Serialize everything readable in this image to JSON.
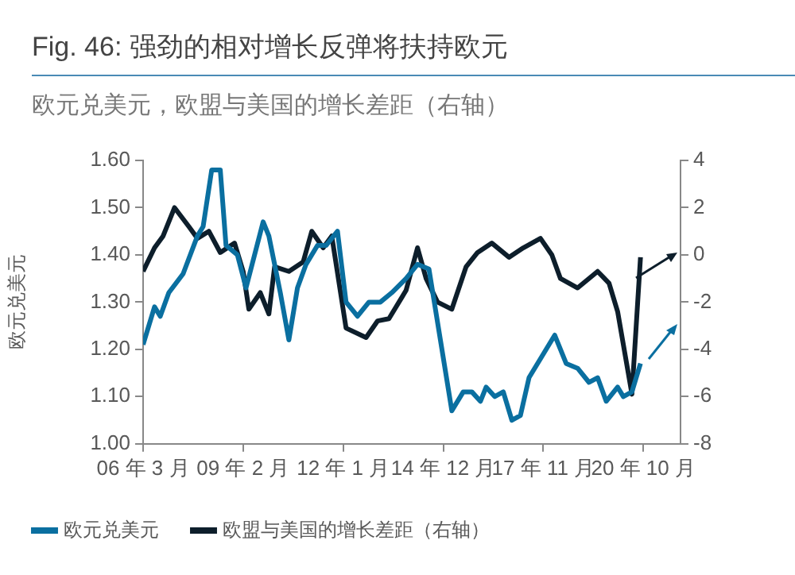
{
  "chart_data": {
    "type": "line",
    "title": "Fig. 46: 强劲的相对增长反弹将扶持欧元",
    "subtitle": "欧元兑美元，欧盟与美国的增长差距（右轴）",
    "ylabel": "欧元兑美元",
    "grid": false,
    "legend": "bottom",
    "marker": "none",
    "xlim": [
      "2006-03",
      "2021-11"
    ],
    "xticks": [
      {
        "value": "2006-03",
        "label": "06 年 3 月"
      },
      {
        "value": "2009-02",
        "label": "09 年 2 月"
      },
      {
        "value": "2012-01",
        "label": "12 年 1 月"
      },
      {
        "value": "2014-12",
        "label": "14 年 12 月"
      },
      {
        "value": "2017-11",
        "label": "17 年 11 月"
      },
      {
        "value": "2020-10",
        "label": "20 年 10 月"
      }
    ],
    "ylim": [
      1.0,
      1.6
    ],
    "yticks": [
      {
        "value": 1.0,
        "label": "1.00"
      },
      {
        "value": 1.1,
        "label": "1.10"
      },
      {
        "value": 1.2,
        "label": "1.20"
      },
      {
        "value": 1.3,
        "label": "1.30"
      },
      {
        "value": 1.4,
        "label": "1.40"
      },
      {
        "value": 1.5,
        "label": "1.50"
      },
      {
        "value": 1.6,
        "label": "1.60"
      }
    ],
    "y2lim": [
      -8,
      4
    ],
    "y2ticks": [
      -8,
      -6,
      -4,
      -2,
      0,
      2,
      4
    ],
    "series": [
      {
        "name": "欧元兑美元",
        "color": "#0a6fa0",
        "x": [
          "2006-03",
          "2006-07",
          "2006-09",
          "2006-12",
          "2007-05",
          "2007-10",
          "2007-12",
          "2008-03",
          "2008-06",
          "2008-08",
          "2008-12",
          "2009-03",
          "2009-09",
          "2009-11",
          "2010-03",
          "2010-06",
          "2010-09",
          "2010-12",
          "2011-04",
          "2011-07",
          "2011-11",
          "2012-02",
          "2012-06",
          "2012-10",
          "2013-02",
          "2013-06",
          "2013-11",
          "2014-03",
          "2014-07",
          "2014-11",
          "2015-03",
          "2015-07",
          "2015-10",
          "2016-01",
          "2016-03",
          "2016-06",
          "2016-09",
          "2016-12",
          "2017-03",
          "2017-06",
          "2017-10",
          "2018-03",
          "2018-07",
          "2018-11",
          "2019-03",
          "2019-06",
          "2019-09",
          "2020-01",
          "2020-03",
          "2020-06",
          "2020-09"
        ],
        "values": [
          1.21,
          1.29,
          1.27,
          1.32,
          1.36,
          1.44,
          1.46,
          1.58,
          1.58,
          1.42,
          1.4,
          1.33,
          1.47,
          1.44,
          1.32,
          1.22,
          1.33,
          1.38,
          1.42,
          1.42,
          1.45,
          1.3,
          1.27,
          1.3,
          1.3,
          1.32,
          1.35,
          1.38,
          1.37,
          1.22,
          1.07,
          1.11,
          1.11,
          1.09,
          1.12,
          1.1,
          1.11,
          1.05,
          1.06,
          1.14,
          1.18,
          1.23,
          1.17,
          1.16,
          1.13,
          1.14,
          1.09,
          1.12,
          1.1,
          1.11,
          1.17
        ]
      },
      {
        "name": "欧盟与美国的增长差距（右轴）",
        "color": "#0d1e2b",
        "axis": "y2",
        "x": [
          "2006-03",
          "2006-07",
          "2006-10",
          "2007-02",
          "2007-07",
          "2007-10",
          "2008-02",
          "2008-06",
          "2008-11",
          "2009-02",
          "2009-04",
          "2009-08",
          "2009-11",
          "2010-01",
          "2010-06",
          "2010-11",
          "2011-02",
          "2011-06",
          "2011-09",
          "2012-02",
          "2012-09",
          "2013-01",
          "2013-05",
          "2013-11",
          "2014-03",
          "2014-06",
          "2014-10",
          "2015-03",
          "2015-08",
          "2015-12",
          "2016-05",
          "2016-11",
          "2017-04",
          "2017-10",
          "2018-02",
          "2018-05",
          "2018-11",
          "2019-06",
          "2019-10",
          "2020-01",
          "2020-06",
          "2020-09"
        ],
        "values": [
          -0.7,
          0.3,
          0.8,
          2.0,
          1.2,
          0.7,
          1.0,
          0.1,
          0.5,
          -0.7,
          -2.3,
          -1.6,
          -2.5,
          -0.5,
          -0.7,
          -0.3,
          1.0,
          0.3,
          0.8,
          -3.1,
          -3.5,
          -2.8,
          -2.7,
          -1.5,
          0.3,
          -1.0,
          -2.0,
          -2.3,
          -0.5,
          0.1,
          0.5,
          -0.1,
          0.3,
          0.7,
          0.0,
          -1.0,
          -1.4,
          -0.7,
          -1.2,
          -2.4,
          -5.9,
          -0.1
        ]
      }
    ]
  }
}
